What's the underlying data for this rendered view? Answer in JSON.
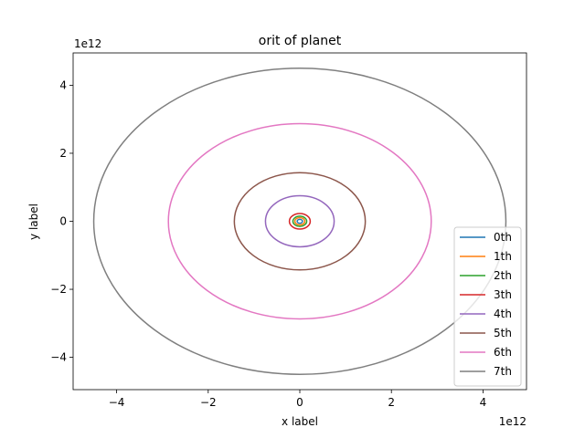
{
  "chart_data": {
    "type": "line",
    "title": "orit of planet",
    "xlabel": "x label",
    "ylabel": "y label",
    "x_offset_label": "1e12",
    "y_offset_label": "1e12",
    "xlim": [
      -4950000000000.0,
      4950000000000.0
    ],
    "ylim": [
      -4950000000000.0,
      4950000000000.0
    ],
    "x_ticks": [
      -4000000000000.0,
      -2000000000000.0,
      0,
      2000000000000.0,
      4000000000000.0
    ],
    "x_tick_labels": [
      "−4",
      "−2",
      "0",
      "2",
      "4"
    ],
    "y_ticks": [
      -4000000000000.0,
      -2000000000000.0,
      0,
      2000000000000.0,
      4000000000000.0
    ],
    "y_tick_labels": [
      "−4",
      "−2",
      "0",
      "2",
      "4"
    ],
    "grid": false,
    "legend_position": "lower-right",
    "series": [
      {
        "name": "0th",
        "color": "#1f77b4",
        "shape": "circular orbit",
        "radius": 58000000000.0
      },
      {
        "name": "1th",
        "color": "#ff7f0e",
        "shape": "circular orbit",
        "radius": 108000000000.0
      },
      {
        "name": "2th",
        "color": "#2ca02c",
        "shape": "circular orbit",
        "radius": 150000000000.0
      },
      {
        "name": "3th",
        "color": "#d62728",
        "shape": "circular orbit",
        "radius": 228000000000.0
      },
      {
        "name": "4th",
        "color": "#9467bd",
        "shape": "circular orbit",
        "radius": 750000000000.0
      },
      {
        "name": "5th",
        "color": "#8c564b",
        "shape": "circular orbit",
        "radius": 1430000000000.0
      },
      {
        "name": "6th",
        "color": "#e377c2",
        "shape": "circular orbit",
        "radius": 2870000000000.0
      },
      {
        "name": "7th",
        "color": "#7f7f7f",
        "shape": "circular orbit",
        "radius": 4500000000000.0
      }
    ]
  }
}
